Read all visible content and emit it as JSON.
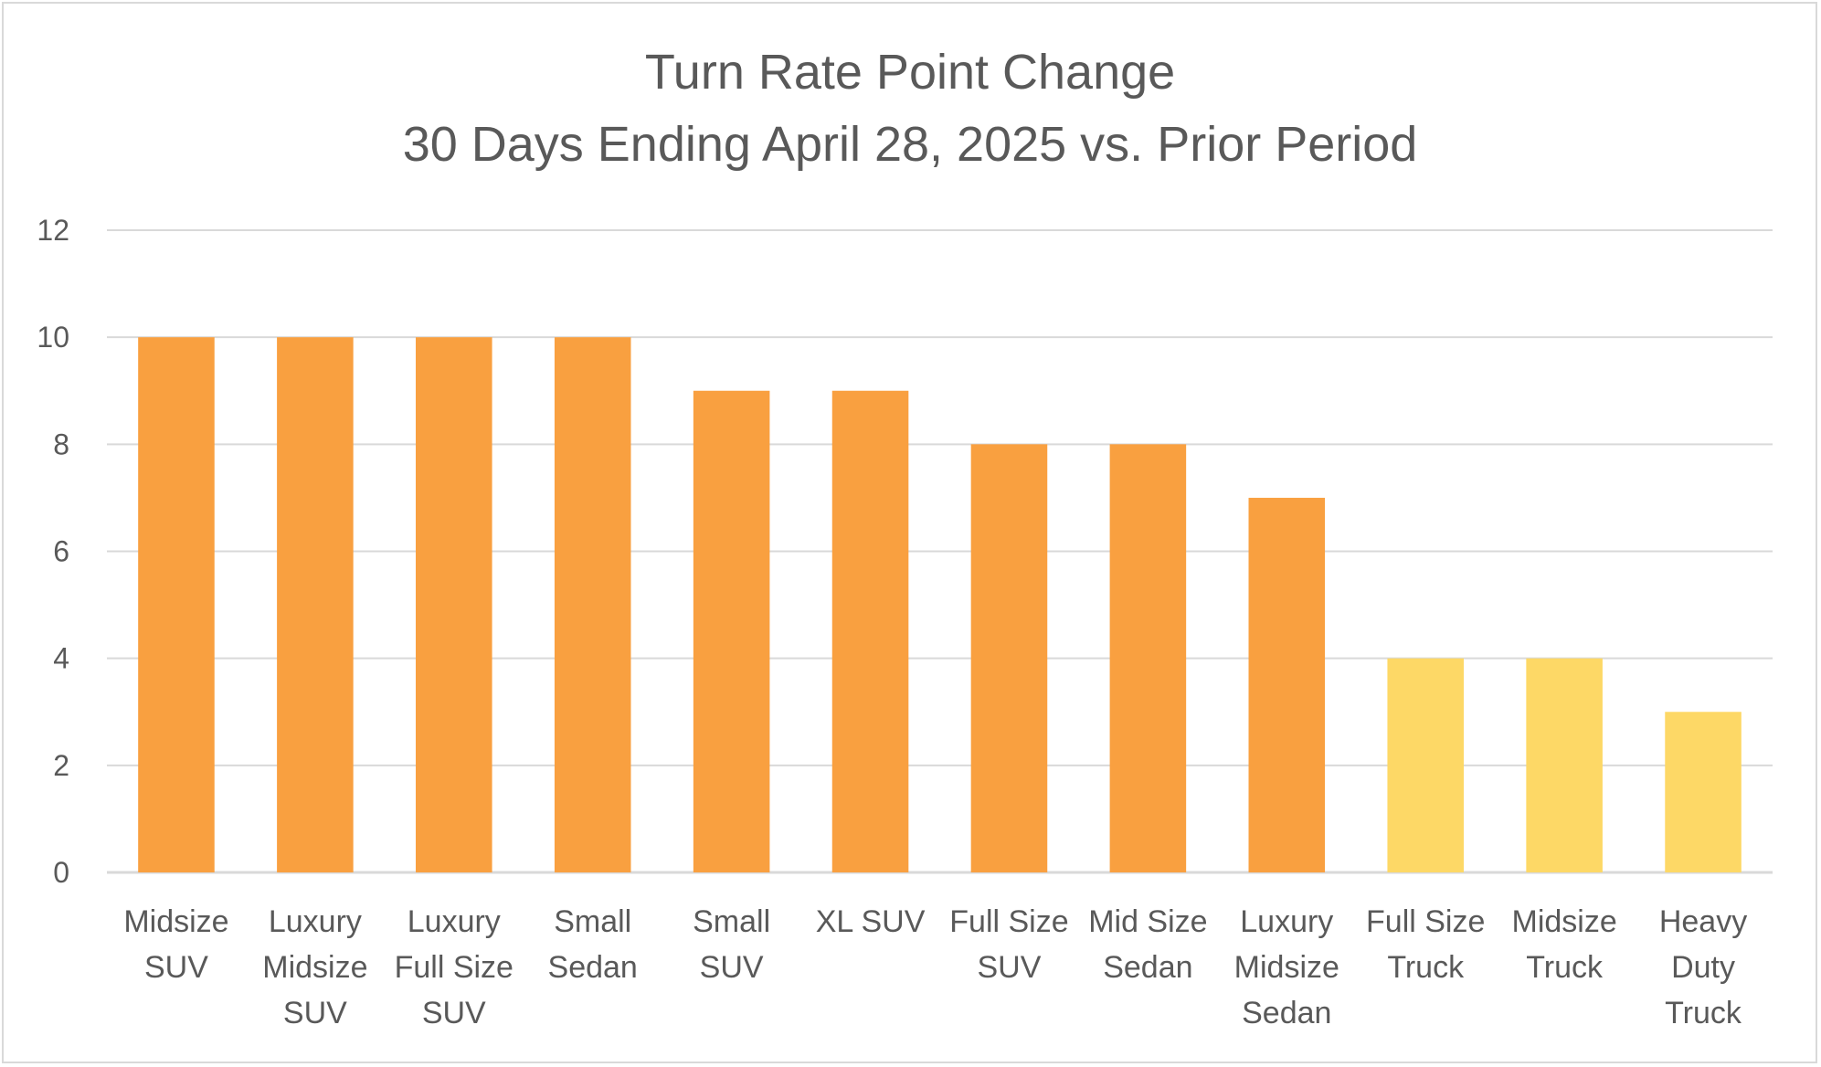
{
  "chart_data": {
    "type": "bar",
    "title": "Turn Rate Point Change",
    "subtitle": "30 Days Ending April 28, 2025 vs. Prior Period",
    "xlabel": "",
    "ylabel": "",
    "ylim": [
      0,
      12
    ],
    "yticks": [
      "0",
      "2",
      "4",
      "6",
      "8",
      "10",
      "12"
    ],
    "grid": true,
    "categories": [
      [
        "Midsize",
        "SUV"
      ],
      [
        "Luxury",
        "Midsize",
        "SUV"
      ],
      [
        "Luxury",
        "Full Size",
        "SUV"
      ],
      [
        "Small",
        "Sedan"
      ],
      [
        "Small",
        "SUV"
      ],
      [
        "XL SUV"
      ],
      [
        "Full Size",
        "SUV"
      ],
      [
        "Mid Size",
        "Sedan"
      ],
      [
        "Luxury",
        "Midsize",
        "Sedan"
      ],
      [
        "Full Size",
        "Truck"
      ],
      [
        "Midsize",
        "Truck"
      ],
      [
        "Heavy",
        "Duty",
        "Truck"
      ]
    ],
    "values": [
      10,
      10,
      10,
      10,
      9,
      9,
      8,
      8,
      7,
      4,
      4,
      3
    ],
    "bar_colors": [
      "#F9A040",
      "#F9A040",
      "#F9A040",
      "#F9A040",
      "#F9A040",
      "#F9A040",
      "#F9A040",
      "#F9A040",
      "#F9A040",
      "#FDD866",
      "#FDD866",
      "#FDD866"
    ]
  },
  "colors": {
    "gridline": "#d9d9d9",
    "text": "#595959",
    "border": "#d9d9d9"
  }
}
